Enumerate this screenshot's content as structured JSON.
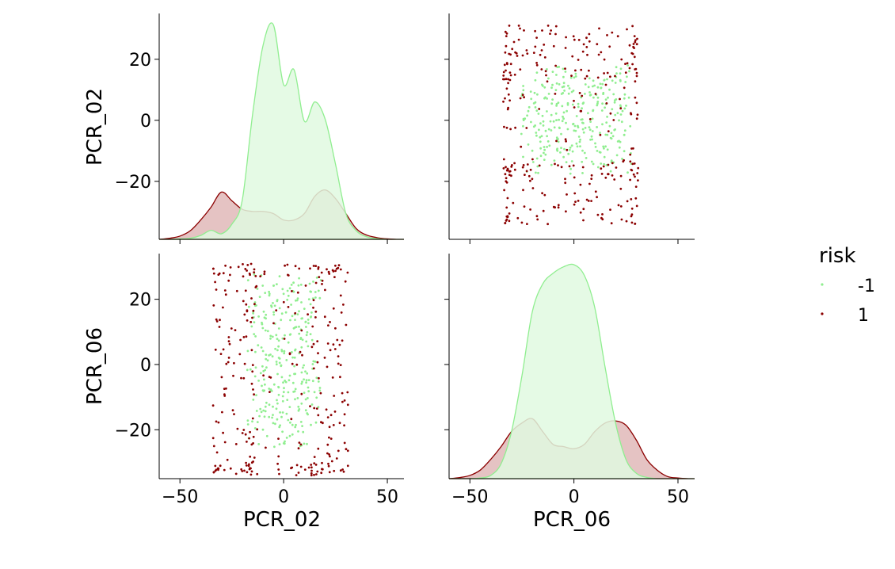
{
  "chart_data": {
    "type": "pairplot",
    "variables": [
      "PCR_02",
      "PCR_06"
    ],
    "axis_labels": {
      "x": [
        "PCR_02",
        "PCR_06"
      ],
      "y": [
        "PCR_02",
        "PCR_06"
      ]
    },
    "x_ticks": [
      -50,
      0,
      50
    ],
    "x_tick_labels": [
      "−50",
      "0",
      "50"
    ],
    "y_ticks": {
      "PCR_02": [
        -20,
        0,
        20
      ],
      "PCR_06": [
        -20,
        0,
        20
      ]
    },
    "y_tick_labels": [
      "−20",
      "0",
      "20"
    ],
    "xlim": [
      -60,
      58
    ],
    "ylim": {
      "PCR_02": [
        -39,
        35
      ],
      "PCR_06": [
        -35,
        34
      ]
    },
    "legend": {
      "title": "risk",
      "placement": "right",
      "entries": [
        {
          "label": "-1",
          "color": "#90ee90"
        },
        {
          "label": "1",
          "color": "#8b0000"
        }
      ]
    },
    "series": [
      {
        "name": "-1",
        "color": "#90ee90",
        "fill": "#e0f9e0"
      },
      {
        "name": "1",
        "color": "#8b0000",
        "fill": "#e0b8b8"
      }
    ],
    "diag_kde": {
      "PCR_02": {
        "x": [
          -60,
          -55,
          -50,
          -45,
          -40,
          -35,
          -30,
          -25,
          -20,
          -15,
          -10,
          -5,
          0,
          5,
          10,
          15,
          20,
          25,
          30,
          35,
          40,
          45,
          50,
          55,
          58
        ],
        "-1": [
          0,
          0,
          0.2,
          0.5,
          1.8,
          4.2,
          2.6,
          7,
          18,
          58,
          90,
          100,
          72,
          79,
          55,
          64,
          56,
          35,
          12,
          4,
          1.2,
          0.3,
          0,
          0,
          0
        ],
        "1": [
          0,
          0.5,
          1.5,
          4,
          9,
          15,
          22,
          18,
          14,
          13,
          13,
          12,
          9,
          9,
          12,
          20,
          23,
          19,
          12,
          5,
          2,
          0.8,
          0.2,
          0,
          0
        ]
      },
      "PCR_06": {
        "x": [
          -60,
          -55,
          -50,
          -45,
          -40,
          -35,
          -30,
          -25,
          -20,
          -15,
          -10,
          -5,
          0,
          5,
          10,
          15,
          20,
          25,
          30,
          35,
          40,
          45,
          50,
          55,
          58
        ],
        "-1": [
          0,
          0,
          0,
          0.3,
          1.5,
          7,
          22,
          48,
          78,
          91,
          96,
          99,
          100,
          95,
          80,
          52,
          26,
          9,
          2.5,
          0.6,
          0,
          0,
          0,
          0,
          0
        ],
        "1": [
          0,
          0.5,
          1.5,
          4,
          9,
          15,
          22,
          26,
          28,
          22,
          16,
          15,
          14,
          16,
          22,
          26,
          27,
          25,
          18,
          9,
          4,
          1,
          0.3,
          0,
          0
        ]
      }
    },
    "scatter_seed": {
      "-1": 300,
      "1": 300
    }
  }
}
